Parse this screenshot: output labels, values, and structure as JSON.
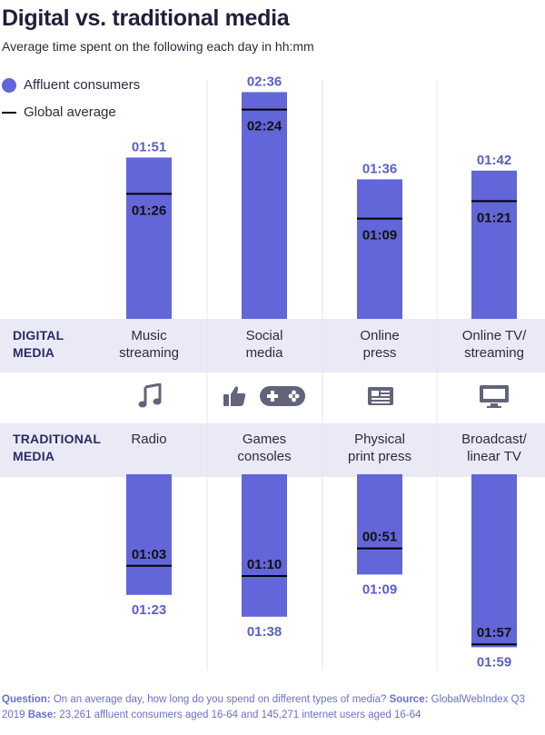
{
  "title": "Digital vs. traditional media",
  "subtitle": "Average time spent on the following each day in hh:mm",
  "legend": {
    "affluent": "Affluent consumers",
    "global": "Global average"
  },
  "colors": {
    "bar": "#6266d8",
    "value_text": "#5a5fc8",
    "average_line": "#000000",
    "band": "#eaeaf6"
  },
  "sections": {
    "digital": {
      "line1": "DIGITAL",
      "line2": "MEDIA"
    },
    "traditional": {
      "line1": "TRADITIONAL",
      "line2": "MEDIA"
    }
  },
  "digital_labels": [
    {
      "line1": "Music",
      "line2": "streaming"
    },
    {
      "line1": "Social",
      "line2": "media"
    },
    {
      "line1": "Online",
      "line2": "press"
    },
    {
      "line1": "Online TV/",
      "line2": "streaming"
    }
  ],
  "traditional_labels": [
    {
      "line1": "Radio",
      "line2": ""
    },
    {
      "line1": "Games",
      "line2": "consoles"
    },
    {
      "line1": "Physical",
      "line2": "print press"
    },
    {
      "line1": "Broadcast/",
      "line2": "linear TV"
    }
  ],
  "icons": [
    "music-note-icon",
    "thumbs-up-icon",
    "gamepad-icon",
    "newspaper-icon",
    "monitor-icon"
  ],
  "chart_data": {
    "type": "bar",
    "units": "hh:mm",
    "series_names": [
      "Affluent consumers",
      "Global average"
    ],
    "digital": {
      "categories": [
        "Music streaming",
        "Social media",
        "Online press",
        "Online TV/streaming"
      ],
      "affluent": [
        "01:51",
        "02:36",
        "01:36",
        "01:42"
      ],
      "global": [
        "01:26",
        "02:24",
        "01:09",
        "01:21"
      ]
    },
    "traditional": {
      "categories": [
        "Radio",
        "Games consoles",
        "Physical print press",
        "Broadcast/linear TV"
      ],
      "affluent": [
        "01:23",
        "01:38",
        "01:09",
        "01:59"
      ],
      "global": [
        "01:03",
        "01:10",
        "00:51",
        "01:57"
      ]
    }
  },
  "footer": {
    "question_label": "Question:",
    "question_text": " On an average day, how long do you spend on different types of media? ",
    "source_label": "Source:",
    "source_text": " GlobalWebIndex Q3 2019 ",
    "base_label": "Base:",
    "base_text": " 23,261 affluent consumers aged 16-64 and 145,271 internet users aged 16-64"
  }
}
